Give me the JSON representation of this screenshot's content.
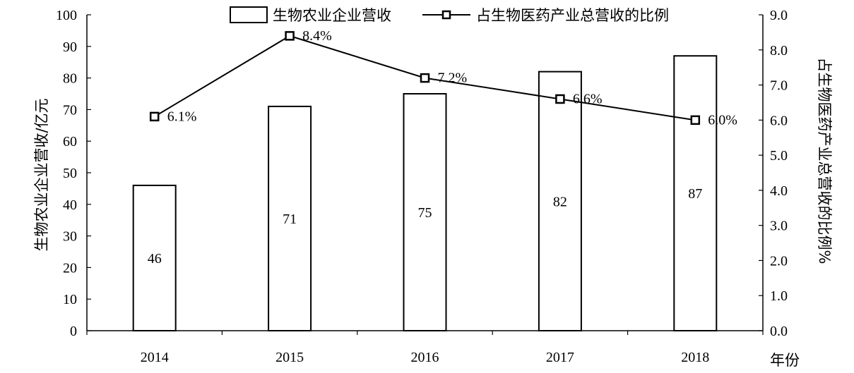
{
  "chart_data": {
    "type": "bar",
    "categories": [
      "2014",
      "2015",
      "2016",
      "2017",
      "2018"
    ],
    "series": [
      {
        "name": "生物农业企业营收",
        "type": "bar",
        "axis": "left",
        "values": [
          46,
          71,
          75,
          82,
          87
        ],
        "data_labels": [
          "46",
          "71",
          "75",
          "82",
          "87"
        ]
      },
      {
        "name": "占生物医药产业总营收的比例",
        "type": "line",
        "axis": "right",
        "marker": "square",
        "values": [
          6.1,
          8.4,
          7.2,
          6.6,
          6.0
        ],
        "data_labels": [
          "6.1%",
          "8.4%",
          "7.2%",
          "6.6%",
          "6.0%"
        ]
      }
    ],
    "xlabel": "年份",
    "ylabel": "生物农业企业营收/亿元",
    "y2label": "占生物医药产业总营收的比例%",
    "ylim": [
      0,
      100
    ],
    "y2lim": [
      0.0,
      9.0
    ],
    "yticks": [
      "0",
      "10",
      "20",
      "30",
      "40",
      "50",
      "60",
      "70",
      "80",
      "90",
      "100"
    ],
    "y2ticks": [
      "0.0",
      "1.0",
      "2.0",
      "3.0",
      "4.0",
      "5.0",
      "6.0",
      "7.0",
      "8.0",
      "9.0"
    ],
    "grid": false,
    "legend_position": "top"
  },
  "colors": {
    "bar_fill": "#ffffff",
    "stroke": "#000000",
    "marker_fill": "#ffffff"
  }
}
